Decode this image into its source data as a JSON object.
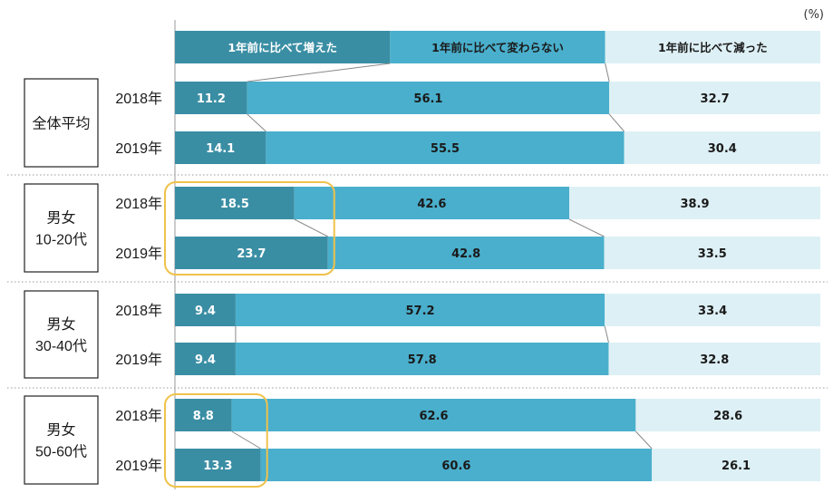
{
  "unit_label": "(%)",
  "chart_data": {
    "type": "bar",
    "orientation": "horizontal",
    "stacked": true,
    "normalized": true,
    "unit": "%",
    "xlim": [
      0,
      100
    ],
    "legend_position": "top",
    "legend": [
      "1年前に比べて増えた",
      "1年前に比べて変わらない",
      "1年前に比べて減った"
    ],
    "colors": [
      "#3a8ea4",
      "#4aafcc",
      "#ddf0f5"
    ],
    "highlight_color": "#f0c24b",
    "groups": [
      {
        "label": "全体平均",
        "rows": [
          {
            "year": "2018年",
            "values": [
              11.2,
              56.1,
              32.7
            ]
          },
          {
            "year": "2019年",
            "values": [
              14.1,
              55.5,
              30.4
            ]
          }
        ]
      },
      {
        "label": "男女\n10-20代",
        "highlight": true,
        "rows": [
          {
            "year": "2018年",
            "values": [
              18.5,
              42.6,
              38.9
            ]
          },
          {
            "year": "2019年",
            "values": [
              23.7,
              42.8,
              33.5
            ]
          }
        ]
      },
      {
        "label": "男女\n30-40代",
        "rows": [
          {
            "year": "2018年",
            "values": [
              9.4,
              57.2,
              33.4
            ]
          },
          {
            "year": "2019年",
            "values": [
              9.4,
              57.8,
              32.8
            ]
          }
        ]
      },
      {
        "label": "男女\n50-60代",
        "highlight": true,
        "rows": [
          {
            "year": "2018年",
            "values": [
              8.8,
              62.6,
              28.6
            ]
          },
          {
            "year": "2019年",
            "values": [
              13.3,
              60.6,
              26.1
            ]
          }
        ]
      }
    ]
  }
}
